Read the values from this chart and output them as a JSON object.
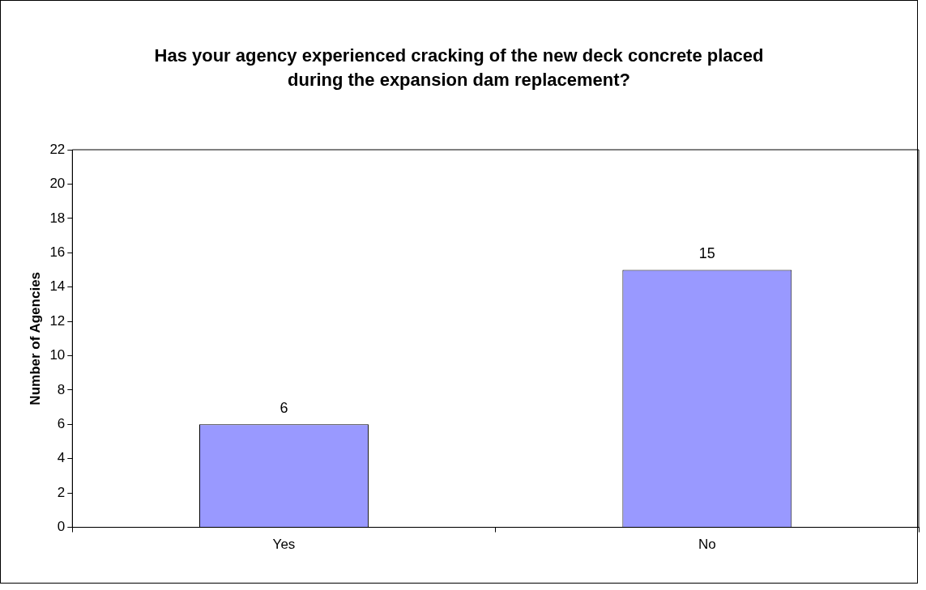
{
  "chart_data": {
    "type": "bar",
    "title": "Has your agency experienced cracking of the new deck concrete placed during the expansion dam replacement?",
    "ylabel": "Number of Agencies",
    "categories": [
      "Yes",
      "No"
    ],
    "values": [
      6,
      15
    ],
    "color": "#9999ff",
    "ylim": [
      0,
      22
    ],
    "yticks": [
      0,
      2,
      4,
      6,
      8,
      10,
      12,
      14,
      16,
      18,
      20,
      22
    ],
    "grid": false,
    "legend": false,
    "data_labels": true
  }
}
